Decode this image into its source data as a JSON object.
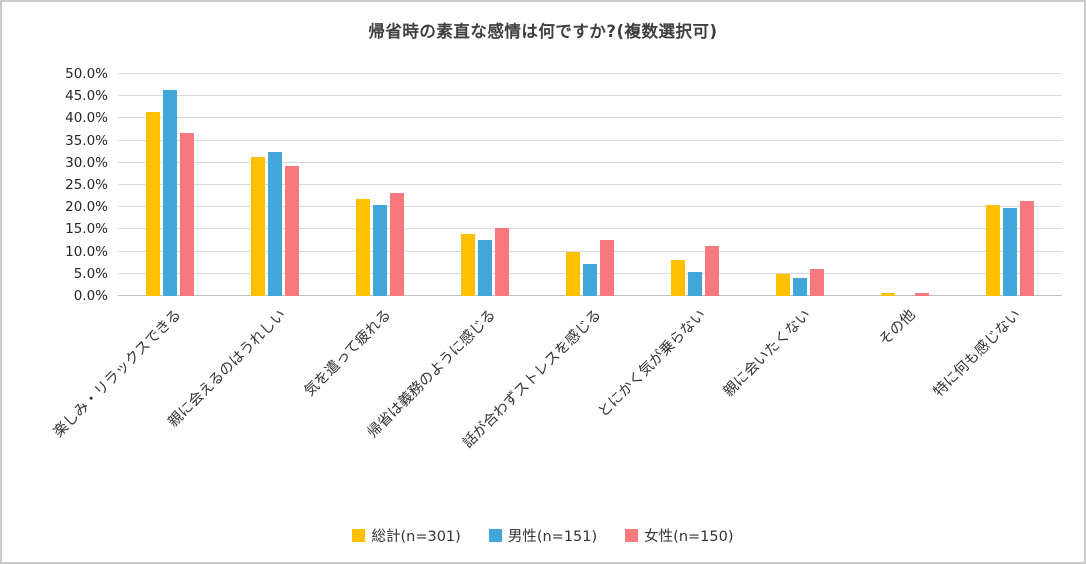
{
  "chart_data": {
    "type": "bar",
    "title": "帰省時の素直な感情は何ですか?(複数選択可)",
    "categories": [
      "楽しみ・リラックスできる",
      "親に会えるのはうれしい",
      "気を遣って疲れる",
      "帰省は義務のように感じる",
      "話が合わずストレスを感じる",
      "とにかく気が乗らない",
      "親に会いたくない",
      "その他",
      "特に何も感じない"
    ],
    "series": [
      {
        "name": "総計(n=301)",
        "color": "#FFC000",
        "values": [
          41.5,
          31.2,
          21.9,
          14.0,
          10.0,
          8.0,
          5.0,
          0.7,
          20.6
        ]
      },
      {
        "name": "男性(n=151)",
        "color": "#41A6D9",
        "values": [
          46.4,
          32.5,
          20.5,
          12.6,
          7.3,
          5.3,
          4.0,
          0.0,
          19.9
        ]
      },
      {
        "name": "女性(n=150)",
        "color": "#F8797D",
        "values": [
          36.7,
          29.3,
          23.3,
          15.3,
          12.7,
          11.3,
          6.0,
          0.7,
          21.3
        ]
      }
    ],
    "ylim": [
      0,
      50
    ],
    "ytick_step": 5,
    "ytick_format": "percent-one-decimal",
    "grid": true,
    "legend_position": "bottom"
  }
}
